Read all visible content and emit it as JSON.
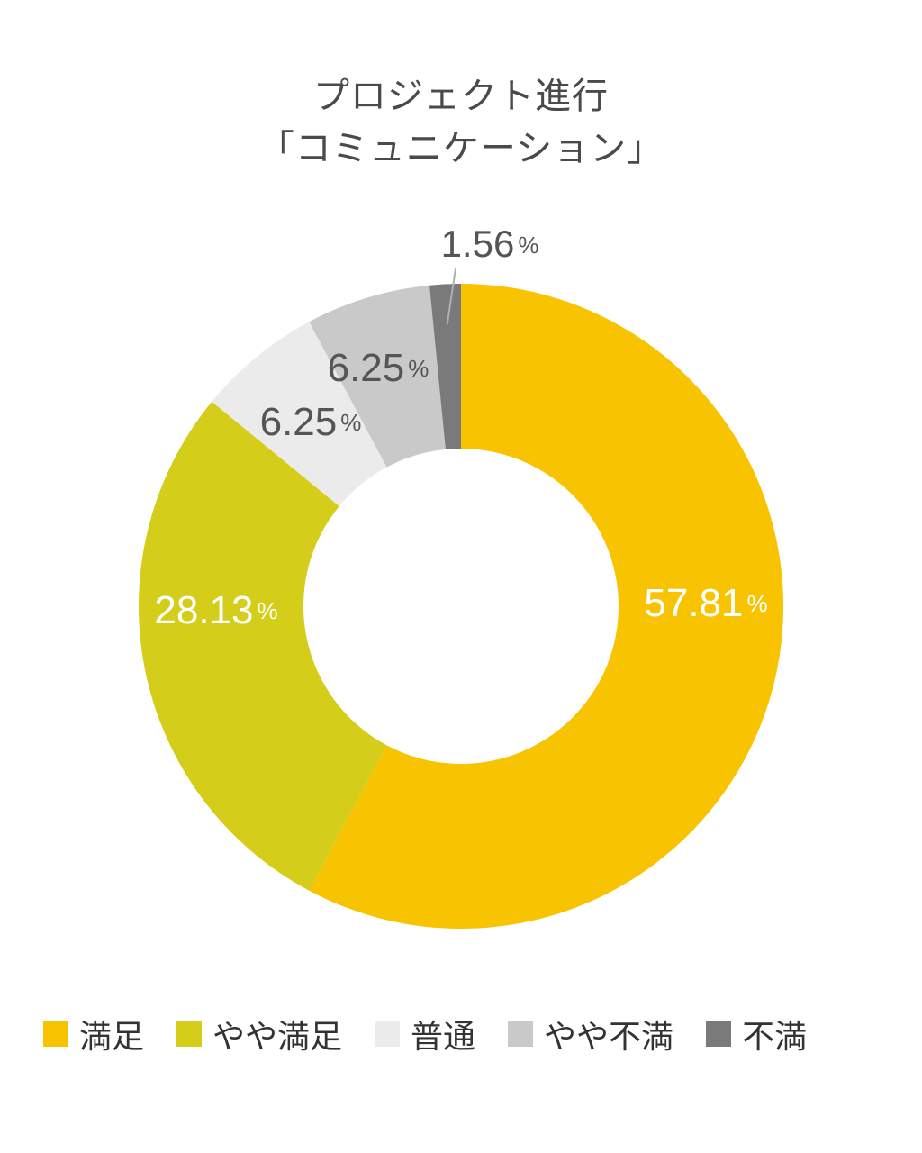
{
  "chart_data": {
    "type": "pie",
    "title_line1": "プロジェクト進行",
    "title_line2": "「コミュニケーション」",
    "categories": [
      "満足",
      "やや満足",
      "普通",
      "やや不満",
      "不満"
    ],
    "values": [
      57.81,
      28.13,
      6.25,
      6.25,
      1.56
    ],
    "labels": [
      "57.81%",
      "28.13%",
      "6.25%",
      "6.25%",
      "1.56%"
    ],
    "colors": [
      "#f8c300",
      "#d4cd1a",
      "#ebebeb",
      "#c9c9c9",
      "#7a7a7a"
    ],
    "label_colors": [
      "#ffffff",
      "#ffffff",
      "#555555",
      "#555555",
      "#555555"
    ],
    "donut": true,
    "legend_position": "bottom"
  }
}
